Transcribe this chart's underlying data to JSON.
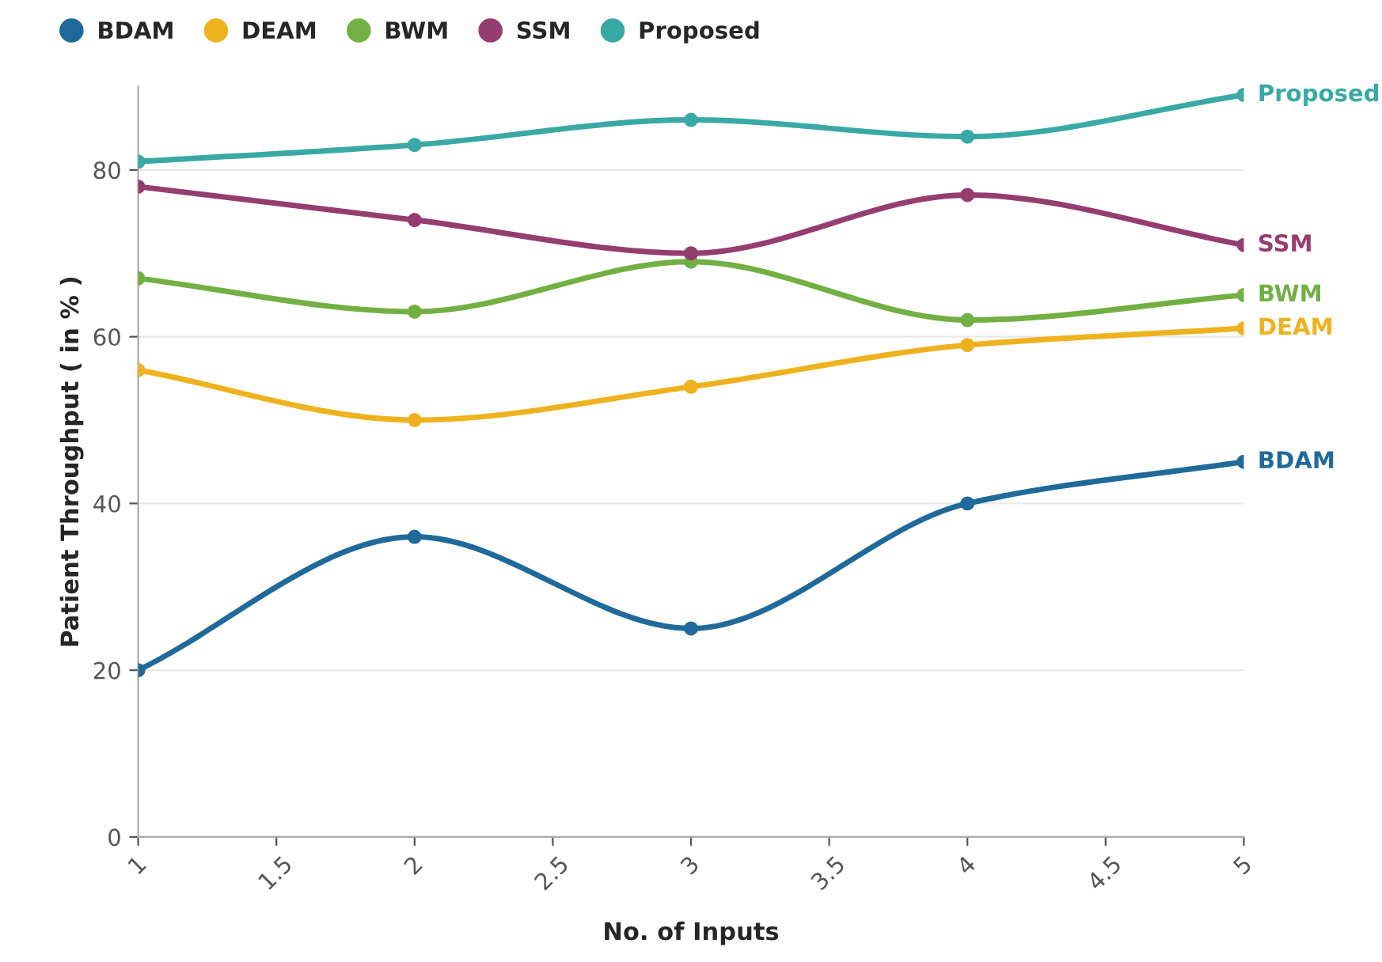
{
  "chart_data": {
    "type": "line",
    "xlabel": "No. of Inputs",
    "ylabel": "Patient Throughput ( in % )",
    "x": [
      1,
      2,
      3,
      4,
      5
    ],
    "series": [
      {
        "name": "BDAM",
        "color": "#1f6a9a",
        "values": [
          20,
          36,
          25,
          40,
          45
        ]
      },
      {
        "name": "DEAM",
        "color": "#efb21f",
        "values": [
          56,
          50,
          54,
          59,
          61
        ]
      },
      {
        "name": "BWM",
        "color": "#72b043",
        "values": [
          67,
          63,
          69,
          62,
          65
        ]
      },
      {
        "name": "SSM",
        "color": "#953d70",
        "values": [
          78,
          74,
          70,
          77,
          71
        ]
      },
      {
        "name": "Proposed",
        "color": "#39a9a5",
        "values": [
          81,
          83,
          86,
          84,
          89
        ]
      }
    ],
    "xlim": [
      1,
      5
    ],
    "xticks": [
      1,
      1.5,
      2,
      2.5,
      3,
      3.5,
      4,
      4.5,
      5
    ],
    "ylim": [
      0,
      90
    ],
    "yticks": [
      0,
      20,
      40,
      60,
      80
    ],
    "grid": "y",
    "legend": "top left",
    "marker": "circle",
    "line_style": "solid"
  }
}
